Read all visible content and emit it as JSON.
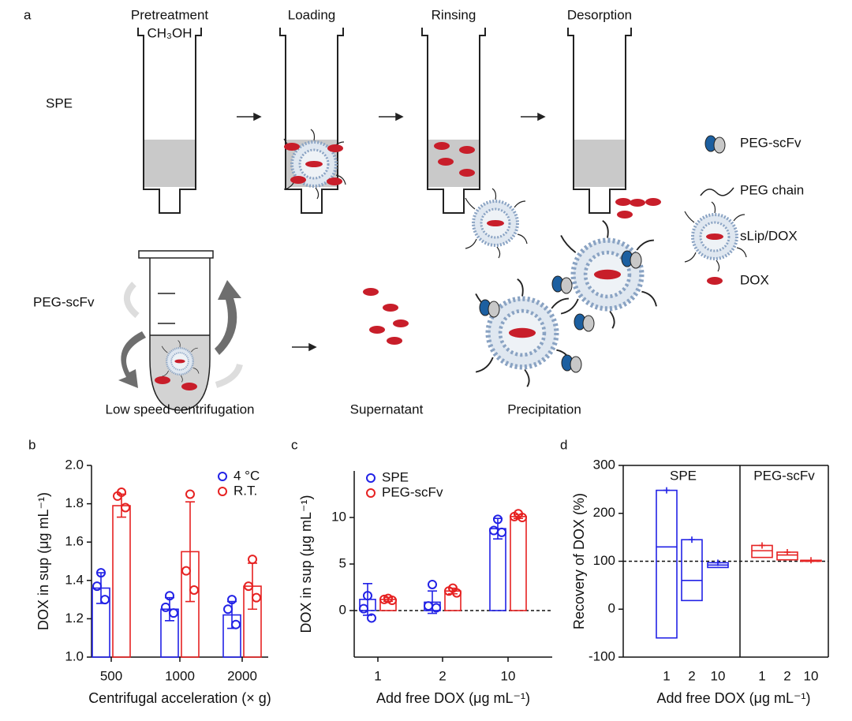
{
  "diagram": {
    "panel_label": "a",
    "steps": [
      "Pretreatment",
      "Loading",
      "Rinsing",
      "Desorption"
    ],
    "solvent": "CH₃OH",
    "method_1": "SPE",
    "method_2": "PEG-scFv",
    "legend": [
      "PEG-scFv",
      "PEG chain",
      "sLip/DOX",
      "DOX"
    ],
    "captions": [
      "Low speed centrifugation",
      "Supernatant",
      "Precipitation"
    ]
  },
  "chart_data": [
    {
      "type": "bar",
      "panel_label": "b",
      "categories": [
        "500",
        "1000",
        "2000"
      ],
      "x_label": "Centrifugal acceleration (× g)",
      "y_label": "DOX in sup (μg mL⁻¹)",
      "ylim": [
        1.0,
        2.0
      ],
      "yticks": [
        {
          "value": 1.0,
          "label": "1.0"
        },
        1.2,
        1.4,
        1.6,
        1.8,
        {
          "value": 2.0,
          "label": "2.0"
        }
      ],
      "series": [
        {
          "name": "4 °C",
          "color": "#2222e6",
          "values": [
            1.36,
            1.25,
            1.22
          ],
          "errors": [
            0.08,
            0.06,
            0.07
          ],
          "points": [
            [
              1.44,
              1.37,
              1.3
            ],
            [
              1.32,
              1.26,
              1.23
            ],
            [
              1.3,
              1.25,
              1.17
            ]
          ]
        },
        {
          "name": "R.T.",
          "color": "#e62222",
          "values": [
            1.79,
            1.55,
            1.37
          ],
          "errors": [
            0.06,
            0.26,
            0.12
          ],
          "points": [
            [
              1.86,
              1.84,
              1.78
            ],
            [
              1.85,
              1.45,
              1.35
            ],
            [
              1.51,
              1.37,
              1.31
            ]
          ]
        }
      ]
    },
    {
      "type": "bar",
      "panel_label": "c",
      "categories": [
        "1",
        "2",
        "10"
      ],
      "x_label": "Add free DOX (μg mL⁻¹)",
      "y_label": "DOX in sup (μg mL⁻¹)",
      "ylim": [
        -5,
        15
      ],
      "yticks": [
        0,
        5,
        10
      ],
      "reference_line": 0,
      "series": [
        {
          "name": "SPE",
          "color": "#2222e6",
          "values": [
            1.2,
            0.9,
            8.8
          ],
          "errors": [
            1.7,
            1.2,
            1.1
          ],
          "points": [
            [
              1.6,
              0.2,
              -0.8
            ],
            [
              2.8,
              0.5,
              0.3
            ],
            [
              9.8,
              8.6,
              8.4
            ]
          ]
        },
        {
          "name": "PEG-scFv",
          "color": "#e62222",
          "values": [
            1.2,
            2.1,
            10.1
          ],
          "errors": [
            0.2,
            0.3,
            0.2
          ],
          "points": [
            [
              1.3,
              1.2,
              1.1
            ],
            [
              2.4,
              2.1,
              1.9
            ],
            [
              10.4,
              10.1,
              10.0
            ]
          ]
        }
      ]
    },
    {
      "type": "box",
      "panel_label": "d",
      "x_label": "Add free DOX (μg mL⁻¹)",
      "y_label": "Recovery of DOX (%)",
      "ylim": [
        -100,
        300
      ],
      "yticks": [
        -100,
        0,
        100,
        200,
        300
      ],
      "reference_line": 100,
      "series": [
        {
          "name": "SPE",
          "color": "#2222e6",
          "categories": [
            "1",
            "2",
            "10"
          ],
          "min": [
            -60,
            18,
            87
          ],
          "max": [
            248,
            145,
            97
          ],
          "mean": [
            130,
            60,
            92
          ]
        },
        {
          "name": "PEG-scFv",
          "color": "#e62222",
          "categories": [
            "1",
            "2",
            "10"
          ],
          "min": [
            108,
            103,
            100
          ],
          "max": [
            133,
            119,
            102
          ],
          "mean": [
            122,
            113,
            101
          ]
        }
      ]
    }
  ]
}
